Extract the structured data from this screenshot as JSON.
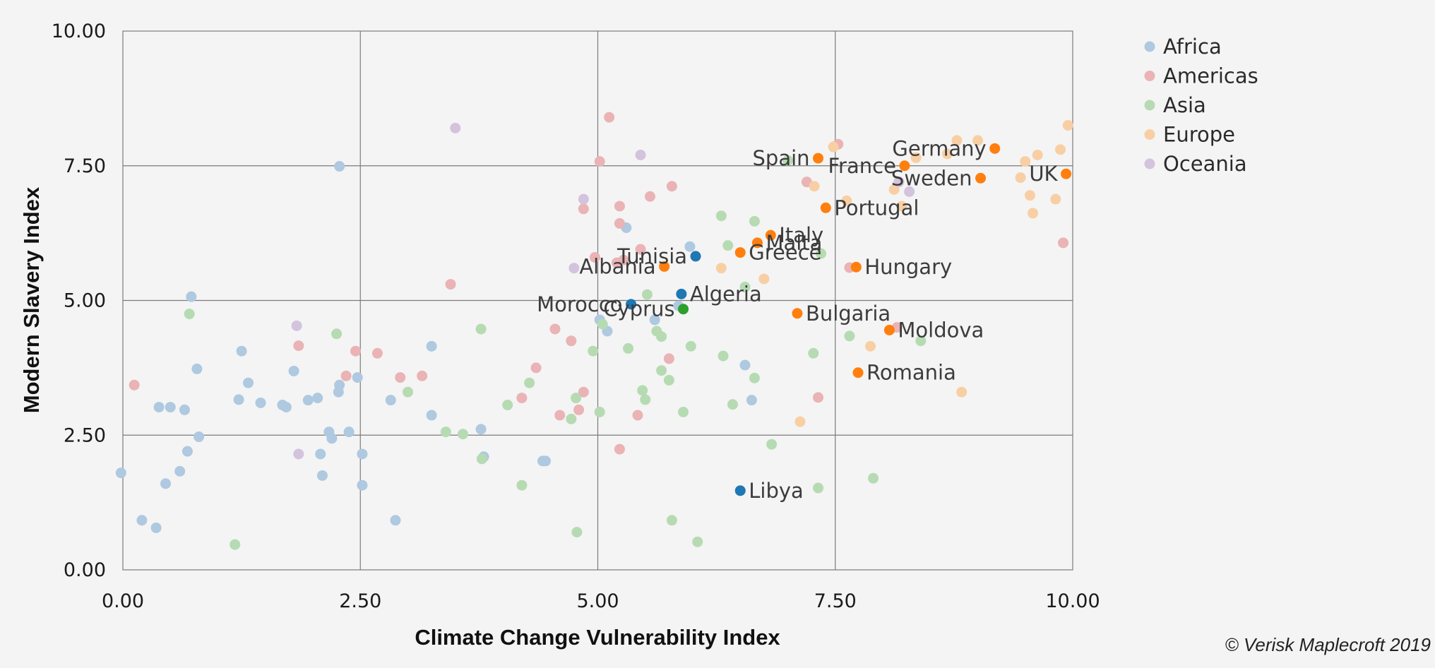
{
  "chart_data": {
    "type": "scatter",
    "xlabel": "Climate Change Vulnerability Index",
    "ylabel": "Modern Slavery Index",
    "xlim": [
      0,
      10
    ],
    "ylim": [
      0,
      10
    ],
    "x_ticks": [
      "0.00",
      "2.50",
      "5.00",
      "7.50",
      "10.00"
    ],
    "y_ticks": [
      "0.00",
      "2.50",
      "5.00",
      "7.50",
      "10.00"
    ],
    "grid": true,
    "legend_position": "top-right",
    "credit": "© Verisk Maplecroft 2019",
    "series": [
      {
        "name": "Africa",
        "color": "#aec9e0",
        "highlight_color": "#1f77b4",
        "points": [
          [
            -0.02,
            1.8
          ],
          [
            0.2,
            0.92
          ],
          [
            0.35,
            0.78
          ],
          [
            0.38,
            3.02
          ],
          [
            0.45,
            1.6
          ],
          [
            0.5,
            3.02
          ],
          [
            0.6,
            1.83
          ],
          [
            0.65,
            2.97
          ],
          [
            0.68,
            2.2
          ],
          [
            0.72,
            5.07
          ],
          [
            0.78,
            3.73
          ],
          [
            0.8,
            2.47
          ],
          [
            1.22,
            3.16
          ],
          [
            1.25,
            4.06
          ],
          [
            1.32,
            3.47
          ],
          [
            1.45,
            3.1
          ],
          [
            1.68,
            3.06
          ],
          [
            1.72,
            3.02
          ],
          [
            1.8,
            3.69
          ],
          [
            1.95,
            3.15
          ],
          [
            2.05,
            3.19
          ],
          [
            2.08,
            2.15
          ],
          [
            2.1,
            1.75
          ],
          [
            2.17,
            2.56
          ],
          [
            2.2,
            2.44
          ],
          [
            2.27,
            3.3
          ],
          [
            2.28,
            3.43
          ],
          [
            2.28,
            7.49
          ],
          [
            2.38,
            2.56
          ],
          [
            2.47,
            3.57
          ],
          [
            2.52,
            2.15
          ],
          [
            2.52,
            1.57
          ],
          [
            2.82,
            3.15
          ],
          [
            2.87,
            0.92
          ],
          [
            3.25,
            2.87
          ],
          [
            3.25,
            4.15
          ],
          [
            3.77,
            2.61
          ],
          [
            3.8,
            2.1
          ],
          [
            4.42,
            2.02
          ],
          [
            4.45,
            2.02
          ],
          [
            5.02,
            4.64
          ],
          [
            5.1,
            4.43
          ],
          [
            5.3,
            6.35
          ],
          [
            5.6,
            4.64
          ],
          [
            5.85,
            4.9
          ],
          [
            5.97,
            6.0
          ],
          [
            6.55,
            3.8
          ],
          [
            6.62,
            3.15
          ]
        ]
      },
      {
        "name": "Americas",
        "color": "#eab3b5",
        "highlight_color": "#d62728",
        "points": [
          [
            0.12,
            3.43
          ],
          [
            1.85,
            4.16
          ],
          [
            2.35,
            3.6
          ],
          [
            2.45,
            4.06
          ],
          [
            2.68,
            4.02
          ],
          [
            2.92,
            3.57
          ],
          [
            3.15,
            3.6
          ],
          [
            3.45,
            5.3
          ],
          [
            4.2,
            3.19
          ],
          [
            4.35,
            3.75
          ],
          [
            4.55,
            4.47
          ],
          [
            4.6,
            2.87
          ],
          [
            4.72,
            4.25
          ],
          [
            4.8,
            2.97
          ],
          [
            4.85,
            3.3
          ],
          [
            4.85,
            6.7
          ],
          [
            4.97,
            5.8
          ],
          [
            5.02,
            7.58
          ],
          [
            5.12,
            8.4
          ],
          [
            5.2,
            5.7
          ],
          [
            5.23,
            6.43
          ],
          [
            5.23,
            6.75
          ],
          [
            5.23,
            2.24
          ],
          [
            5.27,
            5.75
          ],
          [
            5.42,
            2.87
          ],
          [
            5.45,
            5.95
          ],
          [
            5.55,
            6.93
          ],
          [
            5.75,
            3.92
          ],
          [
            5.78,
            7.12
          ],
          [
            7.2,
            7.2
          ],
          [
            7.32,
            3.2
          ],
          [
            7.53,
            7.9
          ],
          [
            7.65,
            5.61
          ],
          [
            8.15,
            4.5
          ],
          [
            8.17,
            7.2
          ],
          [
            9.9,
            6.07
          ]
        ]
      },
      {
        "name": "Asia",
        "color": "#b6dbb3",
        "highlight_color": "#2ca02c",
        "points": [
          [
            0.7,
            4.75
          ],
          [
            1.18,
            0.47
          ],
          [
            2.25,
            4.38
          ],
          [
            3.0,
            3.3
          ],
          [
            3.4,
            2.56
          ],
          [
            3.58,
            2.52
          ],
          [
            3.77,
            4.47
          ],
          [
            3.78,
            2.06
          ],
          [
            4.05,
            3.06
          ],
          [
            4.2,
            1.57
          ],
          [
            4.28,
            3.47
          ],
          [
            4.72,
            2.8
          ],
          [
            4.77,
            3.19
          ],
          [
            4.78,
            0.7
          ],
          [
            4.95,
            4.06
          ],
          [
            5.02,
            2.93
          ],
          [
            5.05,
            4.56
          ],
          [
            5.32,
            4.11
          ],
          [
            5.47,
            3.33
          ],
          [
            5.5,
            3.16
          ],
          [
            5.52,
            5.11
          ],
          [
            5.62,
            4.43
          ],
          [
            5.67,
            4.33
          ],
          [
            5.67,
            3.7
          ],
          [
            5.75,
            3.52
          ],
          [
            5.78,
            0.92
          ],
          [
            5.9,
            2.93
          ],
          [
            5.98,
            4.15
          ],
          [
            6.05,
            0.52
          ],
          [
            6.3,
            6.57
          ],
          [
            6.32,
            3.97
          ],
          [
            6.37,
            6.02
          ],
          [
            6.42,
            3.07
          ],
          [
            6.55,
            5.25
          ],
          [
            6.65,
            6.47
          ],
          [
            6.65,
            3.56
          ],
          [
            6.83,
            2.33
          ],
          [
            7.0,
            7.6
          ],
          [
            7.27,
            4.02
          ],
          [
            7.32,
            1.52
          ],
          [
            7.35,
            5.87
          ],
          [
            7.65,
            4.34
          ],
          [
            7.9,
            1.7
          ],
          [
            8.4,
            4.25
          ]
        ]
      },
      {
        "name": "Europe",
        "color": "#f8cfa4",
        "highlight_color": "#ff7f0e",
        "points": [
          [
            6.3,
            5.6
          ],
          [
            6.75,
            5.4
          ],
          [
            7.13,
            2.75
          ],
          [
            7.28,
            7.12
          ],
          [
            7.48,
            7.85
          ],
          [
            7.62,
            6.85
          ],
          [
            7.87,
            4.15
          ],
          [
            8.12,
            7.06
          ],
          [
            8.2,
            6.75
          ],
          [
            8.35,
            7.65
          ],
          [
            8.68,
            7.72
          ],
          [
            8.78,
            7.97
          ],
          [
            8.83,
            3.3
          ],
          [
            9.0,
            7.97
          ],
          [
            9.45,
            7.28
          ],
          [
            9.5,
            7.58
          ],
          [
            9.55,
            6.95
          ],
          [
            9.58,
            6.62
          ],
          [
            9.63,
            7.7
          ],
          [
            9.82,
            6.88
          ],
          [
            9.87,
            7.8
          ],
          [
            9.95,
            8.25
          ]
        ]
      },
      {
        "name": "Oceania",
        "color": "#d3c3dd",
        "highlight_color": "#9467bd",
        "points": [
          [
            1.83,
            4.53
          ],
          [
            1.85,
            2.15
          ],
          [
            3.5,
            8.2
          ],
          [
            4.75,
            5.6
          ],
          [
            4.85,
            6.88
          ],
          [
            5.45,
            7.7
          ],
          [
            8.17,
            7.2
          ],
          [
            8.28,
            7.02
          ]
        ]
      }
    ],
    "highlighted": [
      {
        "label": "Germany",
        "region": "Europe",
        "x": 9.18,
        "y": 7.82,
        "anchor": "end"
      },
      {
        "label": "France",
        "region": "Europe",
        "x": 8.23,
        "y": 7.5,
        "anchor": "end"
      },
      {
        "label": "UK",
        "region": "Europe",
        "x": 9.93,
        "y": 7.35,
        "anchor": "end"
      },
      {
        "label": "Spain",
        "region": "Europe",
        "x": 7.32,
        "y": 7.64,
        "anchor": "end"
      },
      {
        "label": "Sweden",
        "region": "Europe",
        "x": 9.03,
        "y": 7.27,
        "anchor": "end"
      },
      {
        "label": "Portugal",
        "region": "Europe",
        "x": 7.4,
        "y": 6.72,
        "anchor": "start"
      },
      {
        "label": "Italy",
        "region": "Europe",
        "x": 6.82,
        "y": 6.21,
        "anchor": "start"
      },
      {
        "label": "Tunisia",
        "region": "Africa",
        "x": 6.03,
        "y": 5.82,
        "anchor": "end"
      },
      {
        "label": "Malta",
        "region": "Europe",
        "x": 6.68,
        "y": 6.07,
        "anchor": "start"
      },
      {
        "label": "Greece",
        "region": "Europe",
        "x": 6.5,
        "y": 5.89,
        "anchor": "start"
      },
      {
        "label": "Albania",
        "region": "Europe",
        "x": 5.7,
        "y": 5.63,
        "anchor": "end"
      },
      {
        "label": "Hungary",
        "region": "Europe",
        "x": 7.72,
        "y": 5.62,
        "anchor": "start"
      },
      {
        "label": "Algeria",
        "region": "Africa",
        "x": 5.88,
        "y": 5.12,
        "anchor": "start"
      },
      {
        "label": "Morocco",
        "region": "Africa",
        "x": 5.35,
        "y": 4.93,
        "anchor": "end"
      },
      {
        "label": "Cyprus",
        "region": "Asia",
        "x": 5.9,
        "y": 4.84,
        "anchor": "end"
      },
      {
        "label": "Bulgaria",
        "region": "Europe",
        "x": 7.1,
        "y": 4.76,
        "anchor": "start"
      },
      {
        "label": "Moldova",
        "region": "Europe",
        "x": 8.07,
        "y": 4.45,
        "anchor": "start"
      },
      {
        "label": "Romania",
        "region": "Europe",
        "x": 7.74,
        "y": 3.66,
        "anchor": "start"
      },
      {
        "label": "Libya",
        "region": "Africa",
        "x": 6.5,
        "y": 1.47,
        "anchor": "start"
      }
    ]
  }
}
